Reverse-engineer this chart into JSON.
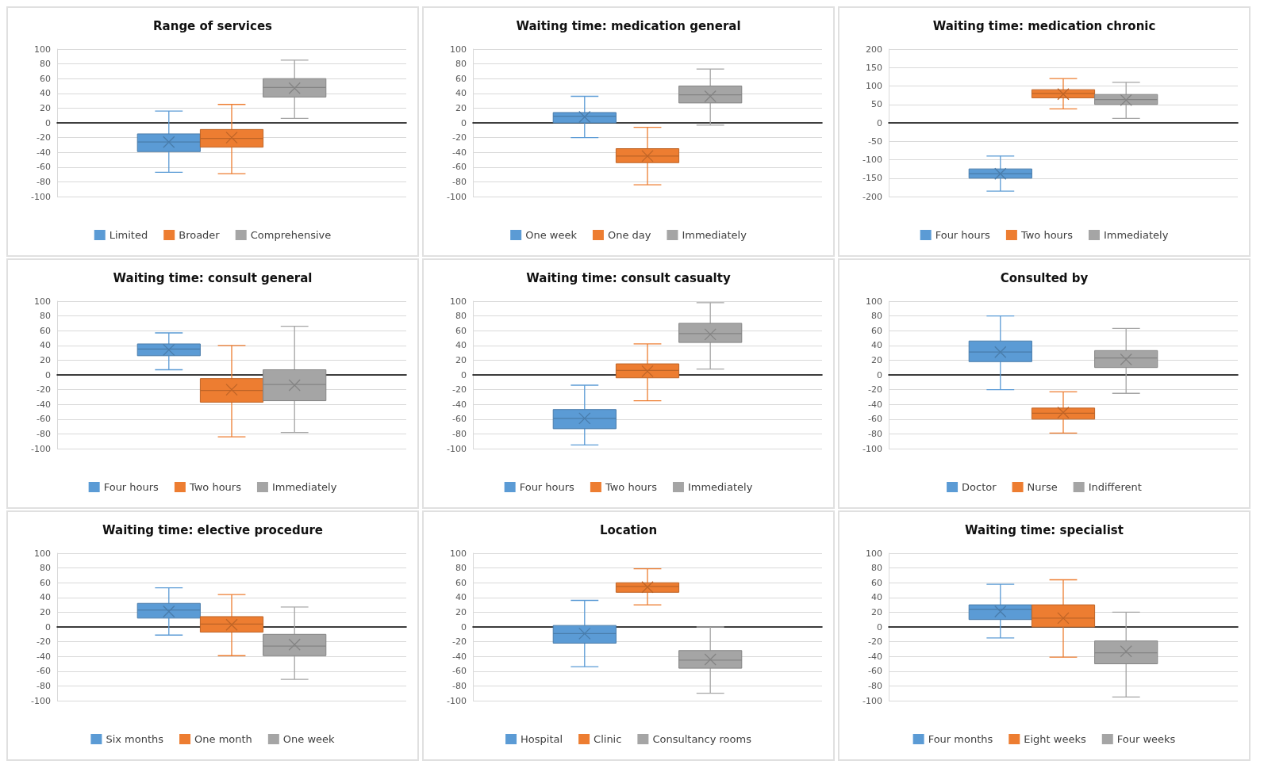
{
  "chart_data": [
    {
      "type": "box",
      "title": "Range of services",
      "categories": [
        null
      ],
      "ylim": [
        -100,
        100
      ],
      "yticks": [
        -100,
        -80,
        -60,
        -40,
        -20,
        0,
        20,
        40,
        60,
        80,
        100
      ],
      "grid": "y",
      "legend": "bottom",
      "marker": "cross",
      "series": [
        {
          "name": "Limited",
          "color": "#5b9bd5",
          "boxes": [
            {
              "low": -67,
              "q1": -39,
              "median": -26,
              "q3": -15,
              "high": 16,
              "mean": -26
            }
          ]
        },
        {
          "name": "Broader",
          "color": "#ed7d31",
          "boxes": [
            {
              "low": -69,
              "q1": -33,
              "median": -21,
              "q3": -9,
              "high": 25,
              "mean": -20
            }
          ]
        },
        {
          "name": "Comprehensive",
          "color": "#a5a5a5",
          "boxes": [
            {
              "low": 6,
              "q1": 35,
              "median": 48,
              "q3": 60,
              "high": 85,
              "mean": 47
            }
          ]
        }
      ]
    },
    {
      "type": "box",
      "title": "Waiting time: medication general",
      "categories": [
        null
      ],
      "ylim": [
        -100,
        100
      ],
      "yticks": [
        -100,
        -80,
        -60,
        -40,
        -20,
        0,
        20,
        40,
        60,
        80,
        100
      ],
      "grid": "y",
      "legend": "bottom",
      "marker": "cross",
      "series": [
        {
          "name": "One week",
          "color": "#5b9bd5",
          "boxes": [
            {
              "low": -20,
              "q1": 0,
              "median": 9,
              "q3": 14,
              "high": 36,
              "mean": 8
            }
          ]
        },
        {
          "name": "One day",
          "color": "#ed7d31",
          "boxes": [
            {
              "low": -84,
              "q1": -54,
              "median": -45,
              "q3": -35,
              "high": -6,
              "mean": -45
            }
          ]
        },
        {
          "name": "Immediately",
          "color": "#a5a5a5",
          "boxes": [
            {
              "low": -3,
              "q1": 27,
              "median": 38,
              "q3": 50,
              "high": 73,
              "mean": 36
            }
          ]
        }
      ]
    },
    {
      "type": "box",
      "title": "Waiting time: medication chronic",
      "categories": [
        null
      ],
      "ylim": [
        -200,
        200
      ],
      "yticks": [
        -200,
        -150,
        -100,
        -50,
        0,
        50,
        100,
        150,
        200
      ],
      "grid": "y",
      "legend": "bottom",
      "marker": "cross",
      "series": [
        {
          "name": "Four hours",
          "color": "#5b9bd5",
          "boxes": [
            {
              "low": -185,
              "q1": -150,
              "median": -138,
              "q3": -125,
              "high": -90,
              "mean": -138
            }
          ]
        },
        {
          "name": "Two hours",
          "color": "#ed7d31",
          "boxes": [
            {
              "low": 38,
              "q1": 68,
              "median": 80,
              "q3": 90,
              "high": 120,
              "mean": 78
            }
          ]
        },
        {
          "name": "Immediately",
          "color": "#a5a5a5",
          "boxes": [
            {
              "low": 12,
              "q1": 50,
              "median": 63,
              "q3": 77,
              "high": 110,
              "mean": 62
            }
          ]
        }
      ]
    },
    {
      "type": "box",
      "title": "Waiting time: consult general",
      "categories": [
        null
      ],
      "ylim": [
        -100,
        100
      ],
      "yticks": [
        -100,
        -80,
        -60,
        -40,
        -20,
        0,
        20,
        40,
        60,
        80,
        100
      ],
      "grid": "y",
      "legend": "bottom",
      "marker": "cross",
      "series": [
        {
          "name": "Four hours",
          "color": "#5b9bd5",
          "boxes": [
            {
              "low": 7,
              "q1": 26,
              "median": 35,
              "q3": 42,
              "high": 57,
              "mean": 34
            }
          ]
        },
        {
          "name": "Two hours",
          "color": "#ed7d31",
          "boxes": [
            {
              "low": -84,
              "q1": -37,
              "median": -21,
              "q3": -5,
              "high": 40,
              "mean": -20
            }
          ]
        },
        {
          "name": "Immediately",
          "color": "#a5a5a5",
          "boxes": [
            {
              "low": -78,
              "q1": -35,
              "median": -13,
              "q3": 7,
              "high": 66,
              "mean": -14
            }
          ]
        }
      ]
    },
    {
      "type": "box",
      "title": "Waiting time: consult casualty",
      "categories": [
        null
      ],
      "ylim": [
        -100,
        100
      ],
      "yticks": [
        -100,
        -80,
        -60,
        -40,
        -20,
        0,
        20,
        40,
        60,
        80,
        100
      ],
      "grid": "y",
      "legend": "bottom",
      "marker": "cross",
      "series": [
        {
          "name": "Four hours",
          "color": "#5b9bd5",
          "boxes": [
            {
              "low": -95,
              "q1": -73,
              "median": -59,
              "q3": -47,
              "high": -14,
              "mean": -59
            }
          ]
        },
        {
          "name": "Two hours",
          "color": "#ed7d31",
          "boxes": [
            {
              "low": -35,
              "q1": -4,
              "median": 6,
              "q3": 15,
              "high": 42,
              "mean": 5
            }
          ]
        },
        {
          "name": "Immediately",
          "color": "#a5a5a5",
          "boxes": [
            {
              "low": 8,
              "q1": 44,
              "median": 56,
              "q3": 70,
              "high": 98,
              "mean": 55
            }
          ]
        }
      ]
    },
    {
      "type": "box",
      "title": "Consulted by",
      "categories": [
        null
      ],
      "ylim": [
        -100,
        100
      ],
      "yticks": [
        -100,
        -80,
        -60,
        -40,
        -20,
        0,
        20,
        40,
        60,
        80,
        100
      ],
      "grid": "y",
      "legend": "bottom",
      "marker": "cross",
      "series": [
        {
          "name": "Doctor",
          "color": "#5b9bd5",
          "boxes": [
            {
              "low": -20,
              "q1": 18,
              "median": 31,
              "q3": 46,
              "high": 80,
              "mean": 31
            }
          ]
        },
        {
          "name": "Nurse",
          "color": "#ed7d31",
          "boxes": [
            {
              "low": -79,
              "q1": -60,
              "median": -52,
              "q3": -45,
              "high": -23,
              "mean": -51
            }
          ]
        },
        {
          "name": "Indifferent",
          "color": "#a5a5a5",
          "boxes": [
            {
              "low": -25,
              "q1": 10,
              "median": 23,
              "q3": 33,
              "high": 63,
              "mean": 21
            }
          ]
        }
      ]
    },
    {
      "type": "box",
      "title": "Waiting time: elective procedure",
      "categories": [
        null
      ],
      "ylim": [
        -100,
        100
      ],
      "yticks": [
        -100,
        -80,
        -60,
        -40,
        -20,
        0,
        20,
        40,
        60,
        80,
        100
      ],
      "grid": "y",
      "legend": "bottom",
      "marker": "cross",
      "series": [
        {
          "name": "Six months",
          "color": "#5b9bd5",
          "boxes": [
            {
              "low": -11,
              "q1": 12,
              "median": 23,
              "q3": 32,
              "high": 53,
              "mean": 21
            }
          ]
        },
        {
          "name": "One month",
          "color": "#ed7d31",
          "boxes": [
            {
              "low": -39,
              "q1": -7,
              "median": 4,
              "q3": 14,
              "high": 44,
              "mean": 3
            }
          ]
        },
        {
          "name": "One week",
          "color": "#a5a5a5",
          "boxes": [
            {
              "low": -71,
              "q1": -39,
              "median": -26,
              "q3": -10,
              "high": 27,
              "mean": -24
            }
          ]
        }
      ]
    },
    {
      "type": "box",
      "title": "Location",
      "categories": [
        null
      ],
      "ylim": [
        -100,
        100
      ],
      "yticks": [
        -100,
        -80,
        -60,
        -40,
        -20,
        0,
        20,
        40,
        60,
        80,
        100
      ],
      "grid": "y",
      "legend": "bottom",
      "marker": "cross",
      "series": [
        {
          "name": "Hospital",
          "color": "#5b9bd5",
          "boxes": [
            {
              "low": -54,
              "q1": -22,
              "median": -9,
              "q3": 2,
              "high": 36,
              "mean": -9
            }
          ]
        },
        {
          "name": "Clinic",
          "color": "#ed7d31",
          "boxes": [
            {
              "low": 30,
              "q1": 47,
              "median": 55,
              "q3": 60,
              "high": 79,
              "mean": 54
            }
          ]
        },
        {
          "name": "Consultancy rooms",
          "color": "#a5a5a5",
          "boxes": [
            {
              "low": -90,
              "q1": -56,
              "median": -45,
              "q3": -32,
              "high": 0,
              "mean": -44
            }
          ]
        }
      ]
    },
    {
      "type": "box",
      "title": "Waiting time: specialist",
      "categories": [
        null
      ],
      "ylim": [
        -100,
        100
      ],
      "yticks": [
        -100,
        -80,
        -60,
        -40,
        -20,
        0,
        20,
        40,
        60,
        80,
        100
      ],
      "grid": "y",
      "legend": "bottom",
      "marker": "cross",
      "series": [
        {
          "name": "Four months",
          "color": "#5b9bd5",
          "boxes": [
            {
              "low": -15,
              "q1": 10,
              "median": 24,
              "q3": 30,
              "high": 58,
              "mean": 21
            }
          ]
        },
        {
          "name": "Eight weeks",
          "color": "#ed7d31",
          "boxes": [
            {
              "low": -41,
              "q1": 0,
              "median": 12,
              "q3": 30,
              "high": 64,
              "mean": 12
            }
          ]
        },
        {
          "name": "Four weeks",
          "color": "#a5a5a5",
          "boxes": [
            {
              "low": -95,
              "q1": -50,
              "median": -35,
              "q3": -19,
              "high": 20,
              "mean": -33
            }
          ]
        }
      ]
    }
  ]
}
